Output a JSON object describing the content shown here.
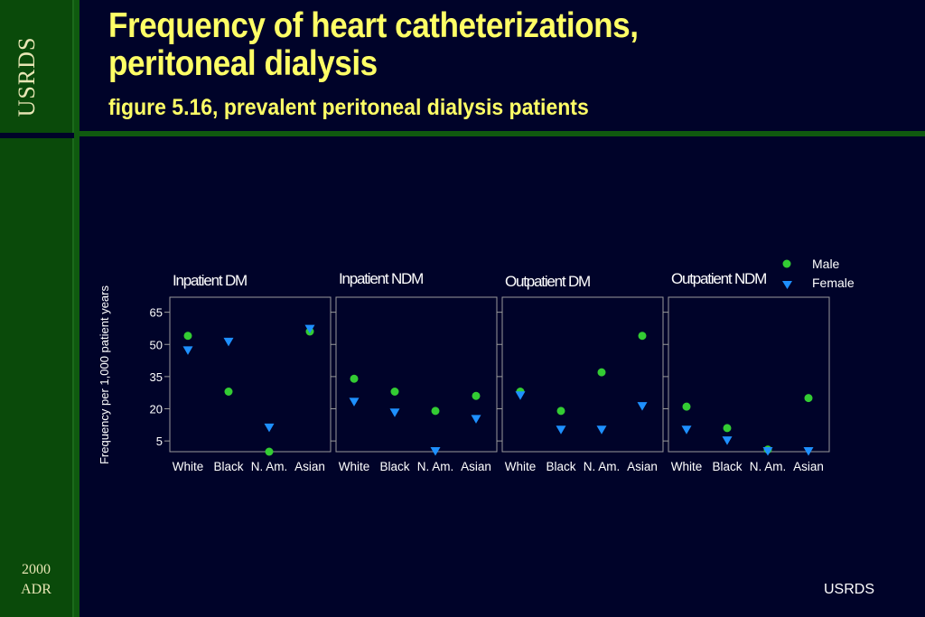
{
  "slide": {
    "title_line1": "Frequency of heart catheterizations,",
    "title_line2": "peritoneal dialysis",
    "subtitle": "figure 5.16, prevalent peritoneal dialysis patients",
    "side_logo": "USRDS",
    "side_year_line1": "2000",
    "side_year_line2": "ADR",
    "footer": "USRDS"
  },
  "colors": {
    "background": "#000329",
    "sidebar": "#0a4a0a",
    "title": "#ffff66",
    "male": "#33cc33",
    "female": "#1e90ff"
  },
  "chart_data": {
    "type": "scatter",
    "ylabel": "Frequency per 1,000 patient years",
    "yticks": [
      5,
      20,
      35,
      50,
      65
    ],
    "ylim": [
      0,
      72
    ],
    "categories": [
      "White",
      "Black",
      "N. Am.",
      "Asian"
    ],
    "legend": {
      "position": "top-right",
      "entries": [
        "Male",
        "Female"
      ]
    },
    "panels": [
      {
        "title": "Inpatient DM",
        "series": [
          {
            "name": "Male",
            "values": [
              54,
              28,
              0,
              56
            ]
          },
          {
            "name": "Female",
            "values": [
              47,
              51,
              11,
              57
            ]
          }
        ]
      },
      {
        "title": "Inpatient NDM",
        "series": [
          {
            "name": "Male",
            "values": [
              34,
              28,
              19,
              26
            ]
          },
          {
            "name": "Female",
            "values": [
              23,
              18,
              0,
              15
            ]
          }
        ]
      },
      {
        "title": "Outpatient DM",
        "series": [
          {
            "name": "Male",
            "values": [
              28,
              19,
              37,
              54
            ]
          },
          {
            "name": "Female",
            "values": [
              26,
              10,
              10,
              21
            ]
          }
        ]
      },
      {
        "title": "Outpatient NDM",
        "series": [
          {
            "name": "Male",
            "values": [
              21,
              11,
              1,
              25
            ]
          },
          {
            "name": "Female",
            "values": [
              10,
              5,
              0,
              0
            ]
          }
        ]
      }
    ]
  }
}
